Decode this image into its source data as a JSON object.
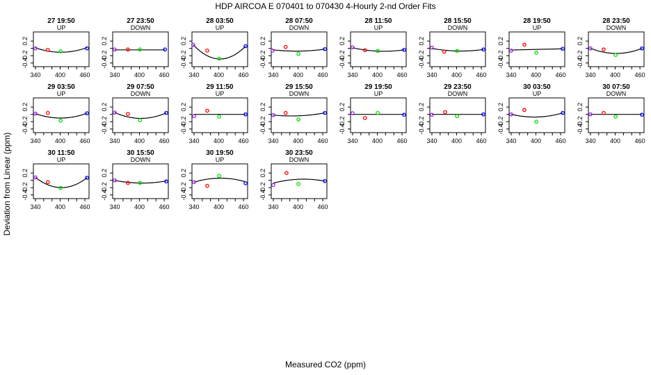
{
  "title": "HDP    AIRCOA E    070401 to 070430    4-Hourly 2-nd Order Fits",
  "ylabel": "Deviation from Linear (ppm)",
  "xlabel": "Measured CO2 (ppm)",
  "chart_data": {
    "type": "scatter",
    "layout": "small-multiples grid, 8 columns",
    "xlim": [
      335,
      470
    ],
    "ylim": [
      -0.5,
      0.45
    ],
    "xticks": [
      340,
      360,
      380,
      400,
      420,
      440,
      460
    ],
    "xtick_labels": [
      "340",
      "400",
      "460"
    ],
    "yticks": [
      0.2,
      0.0,
      -0.2,
      -0.4
    ],
    "ytick_labels": [
      "0.2",
      "-0.2",
      "-0.4"
    ],
    "point_colors": [
      "#a020f0",
      "#ff0000",
      "#00dd00",
      "#0000ff"
    ],
    "curve_color": "#000000",
    "panels": [
      {
        "title": "27 19:50",
        "direction": "UP",
        "x": [
          340,
          370,
          401,
          465
        ],
        "y": [
          0.0,
          -0.04,
          -0.08,
          0.0
        ],
        "fit": [
          0.02,
          -0.08,
          -0.1,
          0.02
        ]
      },
      {
        "title": "27 23:50",
        "direction": "DOWN",
        "x": [
          340,
          372,
          401,
          462
        ],
        "y": [
          -0.03,
          -0.03,
          -0.03,
          -0.03
        ],
        "fit": [
          -0.04,
          -0.04,
          -0.04,
          -0.04
        ]
      },
      {
        "title": "28 03:50",
        "direction": "UP",
        "x": [
          338,
          372,
          401,
          465
        ],
        "y": [
          0.1,
          -0.06,
          -0.28,
          0.06
        ],
        "fit": [
          0.1,
          -0.2,
          -0.29,
          0.06
        ]
      },
      {
        "title": "28 07:50",
        "direction": "DOWN",
        "x": [
          338,
          370,
          401,
          465
        ],
        "y": [
          -0.06,
          0.04,
          -0.15,
          -0.02
        ],
        "fit": [
          -0.04,
          -0.06,
          -0.08,
          -0.02
        ]
      },
      {
        "title": "28 11:50",
        "direction": "UP",
        "x": [
          340,
          370,
          401,
          465
        ],
        "y": [
          0.03,
          -0.05,
          -0.07,
          -0.04
        ],
        "fit": [
          0.02,
          -0.05,
          -0.07,
          -0.04
        ]
      },
      {
        "title": "28 15:50",
        "direction": "DOWN",
        "x": [
          340,
          370,
          401,
          465
        ],
        "y": [
          0.02,
          -0.09,
          -0.07,
          -0.03
        ],
        "fit": [
          0.0,
          -0.05,
          -0.07,
          -0.03
        ]
      },
      {
        "title": "28 19:50",
        "direction": "UP",
        "x": [
          340,
          372,
          401,
          465
        ],
        "y": [
          -0.06,
          0.1,
          -0.12,
          -0.01
        ],
        "fit": [
          -0.05,
          -0.02,
          -0.04,
          -0.01
        ]
      },
      {
        "title": "28 23:50",
        "direction": "DOWN",
        "x": [
          340,
          372,
          401,
          465
        ],
        "y": [
          0.0,
          -0.03,
          -0.18,
          0.0
        ],
        "fit": [
          0.0,
          -0.1,
          -0.14,
          0.0
        ]
      },
      {
        "title": "29 03:50",
        "direction": "UP",
        "x": [
          340,
          370,
          401,
          465
        ],
        "y": [
          0.02,
          0.04,
          -0.17,
          0.03
        ],
        "fit": [
          0.02,
          -0.07,
          -0.1,
          0.03
        ]
      },
      {
        "title": "29 07:50",
        "direction": "DOWN",
        "x": [
          340,
          372,
          401,
          465
        ],
        "y": [
          0.05,
          0.01,
          -0.16,
          0.04
        ],
        "fit": [
          0.05,
          -0.07,
          -0.11,
          0.04
        ]
      },
      {
        "title": "29 11:50",
        "direction": "UP",
        "x": [
          340,
          372,
          401,
          465
        ],
        "y": [
          -0.05,
          0.1,
          -0.06,
          0.0
        ],
        "fit": [
          0.0,
          0.0,
          0.0,
          0.0
        ]
      },
      {
        "title": "29 15:50",
        "direction": "DOWN",
        "x": [
          340,
          370,
          401,
          465
        ],
        "y": [
          -0.02,
          0.04,
          -0.14,
          0.04
        ],
        "fit": [
          -0.02,
          -0.04,
          -0.04,
          0.04
        ]
      },
      {
        "title": "29 19:50",
        "direction": "UP",
        "x": [
          340,
          370,
          401,
          465
        ],
        "y": [
          0.03,
          -0.1,
          0.04,
          -0.01
        ],
        "fit": [
          0.0,
          0.0,
          0.0,
          0.0
        ]
      },
      {
        "title": "29 23:50",
        "direction": "DOWN",
        "x": [
          340,
          372,
          401,
          465
        ],
        "y": [
          -0.01,
          0.06,
          -0.05,
          0.0
        ],
        "fit": [
          0.0,
          0.0,
          0.0,
          0.0
        ]
      },
      {
        "title": "30 03:50",
        "direction": "UP",
        "x": [
          340,
          372,
          401,
          465
        ],
        "y": [
          0.0,
          0.12,
          -0.2,
          0.04
        ],
        "fit": [
          0.0,
          -0.05,
          -0.08,
          0.04
        ]
      },
      {
        "title": "30 07:50",
        "direction": "DOWN",
        "x": [
          340,
          372,
          401,
          465
        ],
        "y": [
          0.0,
          0.04,
          -0.06,
          -0.01
        ],
        "fit": [
          0.0,
          0.0,
          0.0,
          0.0
        ]
      },
      {
        "title": "30 11:50",
        "direction": "UP",
        "x": [
          340,
          370,
          401,
          465
        ],
        "y": [
          0.08,
          -0.05,
          -0.21,
          0.07
        ],
        "fit": [
          0.08,
          -0.12,
          -0.2,
          0.07
        ]
      },
      {
        "title": "30 15:50",
        "direction": "DOWN",
        "x": [
          340,
          372,
          401,
          465
        ],
        "y": [
          0.0,
          -0.07,
          -0.07,
          -0.03
        ],
        "fit": [
          0.0,
          -0.06,
          -0.07,
          -0.02
        ]
      },
      {
        "title": "30 19:50",
        "direction": "UP",
        "x": [
          340,
          372,
          401,
          465
        ],
        "y": [
          -0.05,
          -0.15,
          0.12,
          -0.08
        ],
        "fit": [
          -0.05,
          0.03,
          0.06,
          -0.04
        ]
      },
      {
        "title": "30 23:50",
        "direction": "DOWN",
        "x": [
          340,
          372,
          401,
          465
        ],
        "y": [
          -0.13,
          0.2,
          -0.1,
          -0.02
        ],
        "fit": [
          -0.08,
          0.01,
          0.02,
          -0.02
        ]
      }
    ]
  }
}
